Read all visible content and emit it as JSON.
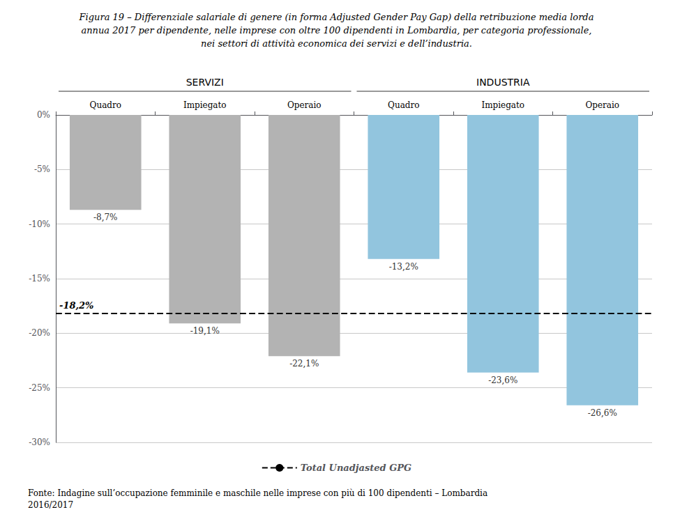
{
  "chart_data": {
    "type": "bar",
    "title": "Figura 19 – Differenziale salariale di genere (in forma Adjusted Gender Pay Gap) della retribuzione media lorda\nannua 2017 per dipendente, nelle imprese con oltre 100 dipendenti in Lombardia, per categoria professionale,\nnei settori di attività economica dei servizi e dell’industria.",
    "footer": "Fonte: Indagine sull’occupazione femminile e maschile nelle imprese con più di 100 dipendenti – Lombardia\n2016/2017",
    "categories": [
      "Quadro",
      "Impiegato",
      "Operaio",
      "Quadro",
      "Impiegato",
      "Operaio"
    ],
    "group_labels": [
      "SERVIZI",
      "INDUSTRIA"
    ],
    "group_sizes": [
      3,
      3
    ],
    "values": [
      -8.7,
      -19.1,
      -22.1,
      -13.2,
      -23.6,
      -26.6
    ],
    "value_labels": [
      "-8,7%",
      "-19,1%",
      "-22,1%",
      "-13,2%",
      "-23,6%",
      "-26,6%"
    ],
    "colors": [
      "#b3b3b3",
      "#b3b3b3",
      "#b3b3b3",
      "#92c5de",
      "#92c5de",
      "#92c5de"
    ],
    "data_labels": true,
    "reference_line": {
      "value": -18.2,
      "label": "-18,2%",
      "name": "Total Unadjasted GPG",
      "color": "#000000",
      "line_style": "dashed"
    },
    "ylim": [
      -30,
      0
    ],
    "yticks": [
      {
        "value": 0,
        "label": "0%"
      },
      {
        "value": -5,
        "label": "-5%"
      },
      {
        "value": -10,
        "label": "-10%"
      },
      {
        "value": -15,
        "label": "-15%"
      },
      {
        "value": -20,
        "label": "-20%"
      },
      {
        "value": -25,
        "label": "-25%"
      },
      {
        "value": -30,
        "label": "-30%"
      }
    ],
    "grid": true,
    "grid_color": "#c8c8c8",
    "legend": "bottom"
  }
}
